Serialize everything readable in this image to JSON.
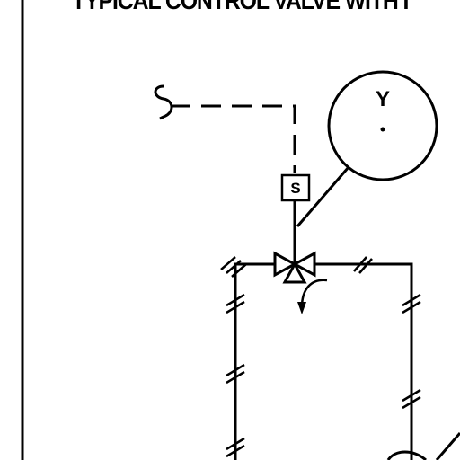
{
  "title": "TYPICAL CONTROL VALVE WITH I",
  "instrument_bubble": {
    "label": "Y"
  },
  "solenoid": {
    "label": "S"
  }
}
